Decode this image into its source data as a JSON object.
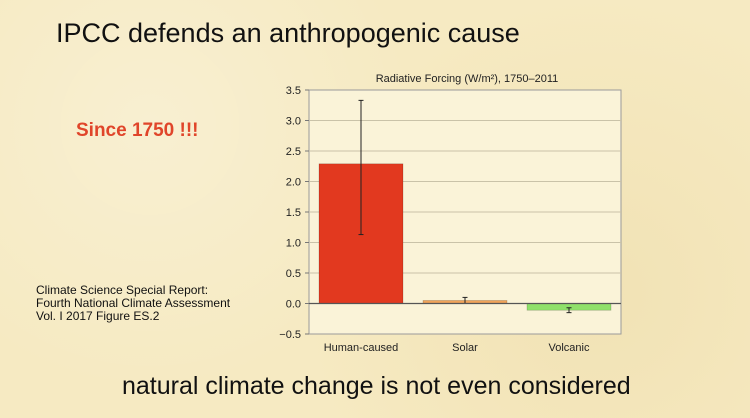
{
  "slide": {
    "title": "IPCC defends an anthropogenic cause",
    "annotation": "Since 1750 !!!",
    "source_lines": [
      "Climate Science Special Report:",
      "Fourth National Climate Assessment",
      "Vol. I 2017 Figure ES.2"
    ],
    "footer": "natural climate change is not even considered"
  },
  "colors": {
    "background": "#f6eac2",
    "annotation": "#e0452a",
    "human": "#e2391f",
    "solar": "#f0a35a",
    "volcanic": "#8fe06a"
  },
  "chart_data": {
    "type": "bar",
    "title": "Radiative Forcing (W/m²), 1750–2011",
    "categories": [
      "Human-caused",
      "Solar",
      "Volcanic"
    ],
    "values": [
      2.29,
      0.05,
      -0.11
    ],
    "error_low": [
      1.13,
      0.0,
      -0.15
    ],
    "error_high": [
      3.33,
      0.1,
      -0.07
    ],
    "ylim": [
      -0.5,
      3.5
    ],
    "yticks": [
      -0.5,
      0.0,
      0.5,
      1.0,
      1.5,
      2.0,
      2.5,
      3.0,
      3.5
    ],
    "ytick_labels": [
      "−0.5",
      "0.0",
      "0.5",
      "1.0",
      "1.5",
      "2.0",
      "2.5",
      "3.0",
      "3.5"
    ],
    "grid": true,
    "xlabel": "",
    "ylabel": ""
  }
}
